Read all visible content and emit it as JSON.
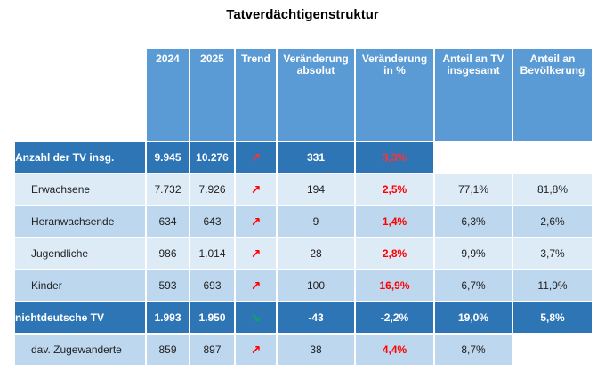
{
  "title": "Tatverdächtigenstruktur",
  "header": [
    "2024",
    "2025",
    "Trend",
    "Veränderung absolut",
    "Veränderung in %",
    "Anteil an TV insgesamt",
    "Anteil an Bevölkerung"
  ],
  "rows": [
    {
      "label": "Anzahl der TV insg.",
      "bold": true,
      "trend_color": "#ff3333",
      "change_color": "#ff3333",
      "cells": [
        "9.945",
        "10.276",
        "↗",
        "331",
        "3,3%"
      ]
    },
    {
      "label": "Erwachsene",
      "bold": false,
      "trend_color": "#ff0000",
      "change_color": "#ff0000",
      "cells": [
        "7.732",
        "7.926",
        "↗",
        "194",
        "2,5%",
        "77,1%",
        "81,8%"
      ]
    },
    {
      "label": "Heranwachsende",
      "bold": false,
      "trend_color": "#ff0000",
      "change_color": "#ff0000",
      "cells": [
        "634",
        "643",
        "↗",
        "9",
        "1,4%",
        "6,3%",
        "2,6%"
      ]
    },
    {
      "label": "Jugendliche",
      "bold": false,
      "trend_color": "#ff0000",
      "change_color": "#ff0000",
      "cells": [
        "986",
        "1.014",
        "↗",
        "28",
        "2,8%",
        "9,9%",
        "3,7%"
      ]
    },
    {
      "label": "Kinder",
      "bold": false,
      "trend_color": "#ff0000",
      "change_color": "#ff0000",
      "cells": [
        "593",
        "693",
        "↗",
        "100",
        "16,9%",
        "6,7%",
        "11,9%"
      ]
    },
    {
      "label": "nichtdeutsche TV",
      "bold": true,
      "trend_color": "#00b050",
      "change_color": "#ffffff",
      "cells": [
        "1.993",
        "1.950",
        "↘",
        "-43",
        "-2,2%",
        "19,0%",
        "5,8%"
      ]
    },
    {
      "label": "dav. Zugewanderte",
      "bold": false,
      "trend_color": "#ff0000",
      "change_color": "#ff0000",
      "cells": [
        "859",
        "897",
        "↗",
        "38",
        "4,4%",
        "8,7%"
      ]
    }
  ]
}
